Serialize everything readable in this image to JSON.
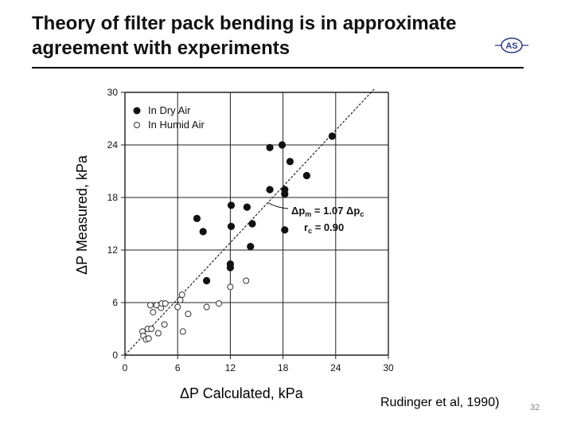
{
  "title": "Theory of filter pack bending is in approximate agreement with experiments",
  "logo_text": "AS",
  "y_label": "ΔP Measured, kPa",
  "x_label": "ΔP Calculated, kPa",
  "credit": "Rudinger et al, 1990)",
  "page_number": "32",
  "colors": {
    "filled": "#111111",
    "open_stroke": "#333333",
    "grid": "#222222"
  },
  "chart_data": {
    "type": "scatter",
    "title": "",
    "xlabel": "ΔP Calculated, kPa",
    "ylabel": "ΔP Measured, kPa",
    "xlim": [
      0,
      30
    ],
    "ylim": [
      0,
      30
    ],
    "xticks": [
      0,
      6,
      12,
      18,
      24,
      30
    ],
    "yticks": [
      0,
      6,
      12,
      18,
      24,
      30
    ],
    "grid": true,
    "legend_position": "top-left",
    "series": [
      {
        "name": "In Dry Air",
        "marker": "filled",
        "points": [
          [
            8.2,
            15.6
          ],
          [
            8.9,
            14.1
          ],
          [
            9.3,
            8.5
          ],
          [
            12.1,
            17.1
          ],
          [
            12.1,
            14.7
          ],
          [
            12.0,
            10.4
          ],
          [
            12.0,
            10.0
          ],
          [
            13.9,
            16.9
          ],
          [
            14.3,
            12.4
          ],
          [
            14.5,
            15.0
          ],
          [
            16.5,
            23.7
          ],
          [
            16.5,
            18.9
          ],
          [
            17.9,
            24.0
          ],
          [
            18.2,
            18.9
          ],
          [
            18.2,
            18.4
          ],
          [
            18.2,
            14.3
          ],
          [
            18.8,
            22.1
          ],
          [
            20.7,
            20.5
          ],
          [
            23.6,
            25.0
          ]
        ]
      },
      {
        "name": "In Humid Air",
        "marker": "open",
        "points": [
          [
            2.0,
            2.7
          ],
          [
            2.1,
            2.2
          ],
          [
            2.4,
            1.8
          ],
          [
            2.6,
            3.0
          ],
          [
            2.7,
            1.9
          ],
          [
            2.9,
            5.7
          ],
          [
            3.0,
            3.0
          ],
          [
            3.2,
            4.9
          ],
          [
            3.6,
            5.7
          ],
          [
            3.8,
            2.5
          ],
          [
            4.1,
            5.4
          ],
          [
            4.2,
            5.9
          ],
          [
            4.5,
            3.5
          ],
          [
            4.6,
            5.9
          ],
          [
            6.0,
            5.5
          ],
          [
            6.3,
            6.3
          ],
          [
            6.5,
            6.9
          ],
          [
            6.6,
            2.7
          ],
          [
            7.2,
            4.7
          ],
          [
            9.3,
            5.5
          ],
          [
            10.7,
            5.9
          ],
          [
            12.0,
            7.8
          ],
          [
            13.8,
            8.5
          ]
        ]
      }
    ],
    "fit_line": {
      "x": [
        0,
        30
      ],
      "y": [
        0,
        32.1
      ],
      "style": "dashed"
    },
    "annotation": {
      "line1_main": "Δp",
      "line1_sub": "m",
      "line1_eq": " = 1.07 Δp",
      "line1_sub2": "c",
      "line2_main": "r",
      "line2_sub": "c",
      "line2_eq": " = 0.90",
      "points_to": [
        16.3,
        17.4
      ]
    }
  }
}
